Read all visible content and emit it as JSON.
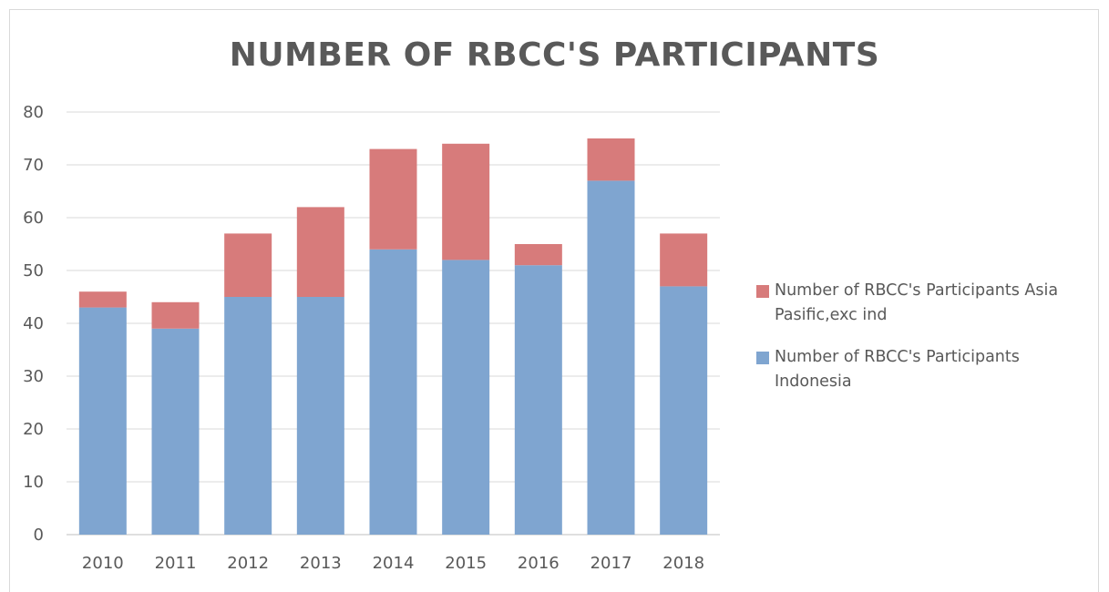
{
  "chart_data": {
    "type": "bar",
    "stacked": true,
    "title": "NUMBER OF RBCC'S PARTICIPANTS",
    "xlabel": "",
    "ylabel": "",
    "categories": [
      "2010",
      "2011",
      "2012",
      "2013",
      "2014",
      "2015",
      "2016",
      "2017",
      "2018"
    ],
    "ylim": [
      0,
      80
    ],
    "yticks": [
      "0",
      "10",
      "20",
      "30",
      "40",
      "50",
      "60",
      "70",
      "80"
    ],
    "grid": true,
    "legend_position": "right",
    "series": [
      {
        "name": "Number of RBCC's Participants Indonesia",
        "color": "#7fa5d0",
        "values": [
          43,
          39,
          45,
          45,
          54,
          52,
          51,
          67,
          47
        ]
      },
      {
        "name": "Number of RBCC's Participants Asia Pasific,exc ind",
        "color": "#d77b7b",
        "values": [
          3,
          5,
          12,
          17,
          19,
          22,
          4,
          8,
          10
        ]
      }
    ]
  }
}
